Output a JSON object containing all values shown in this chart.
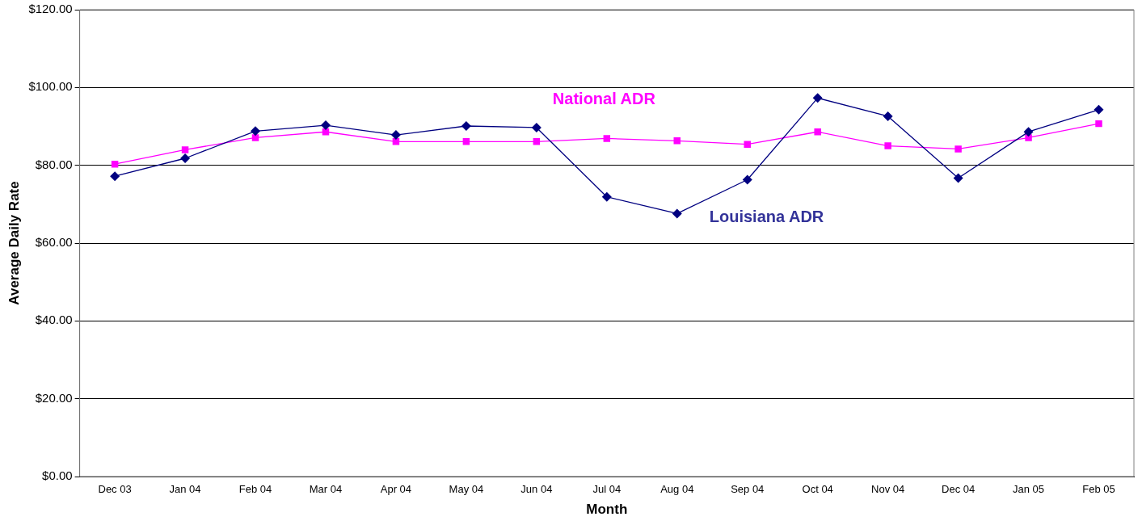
{
  "chart_data": {
    "type": "line",
    "xlabel": "Month",
    "ylabel": "Average Daily Rate",
    "categories": [
      "Dec 03",
      "Jan 04",
      "Feb 04",
      "Mar 04",
      "Apr 04",
      "May 04",
      "Jun 04",
      "Jul 04",
      "Aug 04",
      "Sep 04",
      "Oct 04",
      "Nov 04",
      "Dec 04",
      "Jan 05",
      "Feb 05"
    ],
    "series": [
      {
        "name": "Louisiana ADR",
        "color": "#000080",
        "marker": "diamond",
        "values": [
          77.2,
          81.8,
          88.8,
          90.3,
          87.8,
          90.1,
          89.7,
          71.9,
          67.6,
          76.3,
          97.3,
          92.6,
          76.7,
          88.6,
          94.3
        ]
      },
      {
        "name": "National ADR",
        "color": "#ff00ff",
        "marker": "square",
        "values": [
          80.3,
          84.0,
          87.1,
          88.6,
          86.1,
          86.1,
          86.1,
          86.9,
          86.3,
          85.4,
          88.6,
          85.0,
          84.2,
          87.1,
          90.7
        ]
      }
    ],
    "ylim": [
      0,
      120
    ],
    "yticks": [
      {
        "value": 0,
        "label": "$0.00"
      },
      {
        "value": 20,
        "label": "$20.00"
      },
      {
        "value": 40,
        "label": "$40.00"
      },
      {
        "value": 60,
        "label": "$60.00"
      },
      {
        "value": 80,
        "label": "$80.00"
      },
      {
        "value": 100,
        "label": "$100.00"
      },
      {
        "value": 120,
        "label": "$120.00"
      }
    ],
    "grid": "y",
    "legend": false,
    "line_style": "solid"
  }
}
